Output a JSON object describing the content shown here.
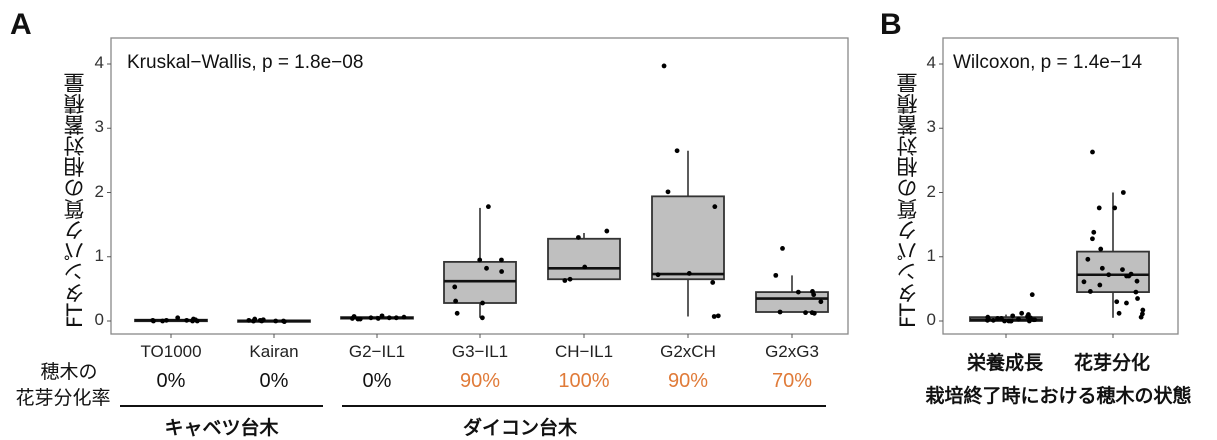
{
  "panels": {
    "A": {
      "label": "A"
    },
    "B": {
      "label": "B"
    }
  },
  "row_label": {
    "line1": "穂木の",
    "line2": "花芽分化率"
  },
  "groups": [
    {
      "label": "キャベツ台木"
    },
    {
      "label": "ダイコン台木"
    }
  ],
  "flowering_rates": [
    {
      "category": "TO1000",
      "value": "0%",
      "color": "#111111"
    },
    {
      "category": "Kairan",
      "value": "0%",
      "color": "#111111"
    },
    {
      "category": "G2−IL1",
      "value": "0%",
      "color": "#111111"
    },
    {
      "category": "G3−IL1",
      "value": "90%",
      "color": "#e07b39"
    },
    {
      "category": "CH−IL1",
      "value": "100%",
      "color": "#e07b39"
    },
    {
      "category": "G2xCH",
      "value": "90%",
      "color": "#e07b39"
    },
    {
      "category": "G2xG3",
      "value": "70%",
      "color": "#e07b39"
    }
  ],
  "colors": {
    "box_fill": "#bfbfbf",
    "box_stroke": "#333333",
    "accent_orange": "#e07b39",
    "frame": "#888888"
  },
  "chart_data": [
    {
      "type": "box",
      "title": "",
      "annotation": "Kruskal−Wallis, p = 1.8e−08",
      "xlabel": "",
      "ylabel": "FTタンパク質の相対蓄積量",
      "ylim": [
        0,
        4.2
      ],
      "yticks": [
        "0",
        "1",
        "2",
        "3",
        "4"
      ],
      "grid": false,
      "categories": [
        "TO1000",
        "Kairan",
        "G2−IL1",
        "G3−IL1",
        "CH−IL1",
        "G2xCH",
        "G2xG3"
      ],
      "boxes": [
        {
          "category": "TO1000",
          "min": 0.0,
          "q1": 0.0,
          "median": 0.01,
          "q3": 0.02,
          "max": 0.03,
          "points": [
            0.0,
            0.01,
            0.03,
            0.05,
            0.0,
            0.01,
            0.02,
            0.0,
            0.01,
            0.0
          ]
        },
        {
          "category": "Kairan",
          "min": 0.0,
          "q1": 0.0,
          "median": 0.0,
          "q3": 0.01,
          "max": 0.02,
          "points": [
            0.0,
            -0.01,
            0.0,
            0.01,
            0.03,
            0.0,
            0.0,
            0.01,
            0.02,
            0.0
          ]
        },
        {
          "category": "G2−IL1",
          "min": 0.03,
          "q1": 0.04,
          "median": 0.05,
          "q3": 0.06,
          "max": 0.08,
          "points": [
            0.05,
            0.08,
            0.03,
            0.06,
            0.04,
            0.07,
            0.05,
            0.05,
            0.03,
            0.04
          ]
        },
        {
          "category": "G3−IL1",
          "min": 0.05,
          "q1": 0.28,
          "median": 0.62,
          "q3": 0.92,
          "max": 1.76,
          "points": [
            1.78,
            0.95,
            0.95,
            0.82,
            0.77,
            0.53,
            0.31,
            0.28,
            0.12,
            0.05
          ]
        },
        {
          "category": "CH−IL1",
          "min": 0.65,
          "q1": 0.65,
          "median": 0.82,
          "q3": 1.28,
          "max": 1.37,
          "points": [
            1.4,
            1.3,
            0.84,
            0.65,
            0.63
          ]
        },
        {
          "category": "G2xCH",
          "min": 0.07,
          "q1": 0.65,
          "median": 0.73,
          "q3": 1.94,
          "max": 2.65,
          "points": [
            3.97,
            2.65,
            2.01,
            1.78,
            0.74,
            0.72,
            0.6,
            0.08,
            0.07
          ]
        },
        {
          "category": "G2xG3",
          "min": 0.14,
          "q1": 0.14,
          "median": 0.35,
          "q3": 0.45,
          "max": 0.71,
          "points": [
            1.13,
            0.71,
            0.46,
            0.45,
            0.41,
            0.3,
            0.14,
            0.13,
            0.13,
            0.12
          ]
        }
      ]
    },
    {
      "type": "box",
      "title": "",
      "annotation": "Wilcoxon, p = 1.4e−14",
      "xlabel": "栽培終了時における穂木の状態",
      "ylabel": "FTタンパク質の相対蓄積量",
      "ylim": [
        0,
        4.2
      ],
      "yticks": [
        "0",
        "1",
        "2",
        "3",
        "4"
      ],
      "grid": false,
      "categories": [
        "栄養成長",
        "花芽分化"
      ],
      "boxes": [
        {
          "category": "栄養成長",
          "min": 0.0,
          "q1": 0.0,
          "median": 0.02,
          "q3": 0.06,
          "max": 0.1,
          "points": [
            0.41,
            0.12,
            0.1,
            0.08,
            0.07,
            0.06,
            0.05,
            0.04,
            0.04,
            0.03,
            0.03,
            0.02,
            0.02,
            0.01,
            0.01,
            0.0,
            0.0,
            0.0,
            0.0,
            0.0
          ]
        },
        {
          "category": "花芽分化",
          "min": 0.05,
          "q1": 0.45,
          "median": 0.72,
          "q3": 1.08,
          "max": 2.0,
          "points": [
            2.63,
            2.0,
            1.76,
            1.76,
            1.38,
            1.28,
            1.12,
            0.96,
            0.82,
            0.8,
            0.73,
            0.72,
            0.7,
            0.7,
            0.62,
            0.61,
            0.56,
            0.46,
            0.45,
            0.35,
            0.3,
            0.28,
            0.17,
            0.12,
            0.11,
            0.06
          ]
        }
      ]
    }
  ]
}
